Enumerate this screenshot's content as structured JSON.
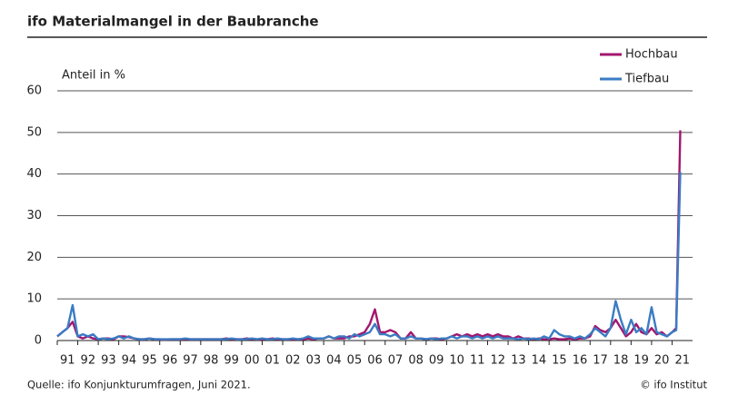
{
  "chart_data": {
    "type": "line",
    "title": "ifo Materialmangel in der Baubranche",
    "y_label": "Anteil in %",
    "source": "Quelle: ifo Konjunkturumfragen, Juni 2021.",
    "copyright": "© ifo Institut",
    "xlim": [
      1991,
      2022
    ],
    "xticks": [
      {
        "value": 1991,
        "label": "91"
      },
      {
        "value": 1992,
        "label": "92"
      },
      {
        "value": 1993,
        "label": "93"
      },
      {
        "value": 1994,
        "label": "94"
      },
      {
        "value": 1995,
        "label": "95"
      },
      {
        "value": 1996,
        "label": "96"
      },
      {
        "value": 1997,
        "label": "97"
      },
      {
        "value": 1998,
        "label": "98"
      },
      {
        "value": 1999,
        "label": "99"
      },
      {
        "value": 2000,
        "label": "00"
      },
      {
        "value": 2001,
        "label": "01"
      },
      {
        "value": 2002,
        "label": "02"
      },
      {
        "value": 2003,
        "label": "03"
      },
      {
        "value": 2004,
        "label": "04"
      },
      {
        "value": 2005,
        "label": "05"
      },
      {
        "value": 2006,
        "label": "06"
      },
      {
        "value": 2007,
        "label": "07"
      },
      {
        "value": 2008,
        "label": "08"
      },
      {
        "value": 2009,
        "label": "09"
      },
      {
        "value": 2010,
        "label": "10"
      },
      {
        "value": 2011,
        "label": "11"
      },
      {
        "value": 2012,
        "label": "12"
      },
      {
        "value": 2013,
        "label": "13"
      },
      {
        "value": 2014,
        "label": "14"
      },
      {
        "value": 2015,
        "label": "15"
      },
      {
        "value": 2016,
        "label": "16"
      },
      {
        "value": 2017,
        "label": "17"
      },
      {
        "value": 2018,
        "label": "18"
      },
      {
        "value": 2019,
        "label": "19"
      },
      {
        "value": 2020,
        "label": "20"
      },
      {
        "value": 2021,
        "label": "21"
      }
    ],
    "ylim": [
      0,
      60
    ],
    "yticks": [
      0,
      10,
      20,
      30,
      40,
      50,
      60
    ],
    "grid": true,
    "x": [
      1991,
      1991.25,
      1991.5,
      1991.75,
      1992,
      1992.25,
      1992.5,
      1992.75,
      1993,
      1993.25,
      1993.5,
      1993.75,
      1994,
      1994.25,
      1994.5,
      1994.75,
      1995,
      1995.25,
      1995.5,
      1995.75,
      1996,
      1996.25,
      1996.5,
      1996.75,
      1997,
      1997.25,
      1997.5,
      1997.75,
      1998,
      1998.25,
      1998.5,
      1998.75,
      1999,
      1999.25,
      1999.5,
      1999.75,
      2000,
      2000.25,
      2000.5,
      2000.75,
      2001,
      2001.25,
      2001.5,
      2001.75,
      2002,
      2002.25,
      2002.5,
      2002.75,
      2003,
      2003.25,
      2003.5,
      2003.75,
      2004,
      2004.25,
      2004.5,
      2004.75,
      2005,
      2005.25,
      2005.5,
      2005.75,
      2006,
      2006.25,
      2006.5,
      2006.75,
      2007,
      2007.25,
      2007.5,
      2007.75,
      2008,
      2008.25,
      2008.5,
      2008.75,
      2009,
      2009.25,
      2009.5,
      2009.75,
      2010,
      2010.25,
      2010.5,
      2010.75,
      2011,
      2011.25,
      2011.5,
      2011.75,
      2012,
      2012.25,
      2012.5,
      2012.75,
      2013,
      2013.25,
      2013.5,
      2013.75,
      2014,
      2014.25,
      2014.5,
      2014.75,
      2015,
      2015.25,
      2015.5,
      2015.75,
      2016,
      2016.25,
      2016.5,
      2016.75,
      2017,
      2017.25,
      2017.5,
      2017.75,
      2018,
      2018.25,
      2018.5,
      2018.75,
      2019,
      2019.25,
      2019.5,
      2019.75,
      2020,
      2020.25,
      2020.5,
      2020.75,
      2021,
      2021.2,
      2021.4
    ],
    "series": [
      {
        "name": "Hochbau",
        "color": "#a3166f",
        "values": [
          1,
          2,
          3,
          4.5,
          1,
          0.5,
          1,
          0.5,
          0.3,
          0.5,
          0.5,
          0.3,
          1,
          1,
          0.8,
          0.5,
          0.3,
          0.3,
          0.5,
          0.3,
          0.3,
          0.2,
          0.3,
          0.3,
          0.3,
          0.3,
          0.3,
          0.3,
          0.3,
          0.3,
          0.3,
          0.3,
          0.3,
          0.5,
          0.3,
          0.3,
          0.3,
          0.5,
          0.3,
          0.3,
          0.3,
          0.3,
          0.5,
          0.3,
          0.3,
          0.3,
          0.3,
          0.3,
          0.3,
          0.5,
          0.3,
          0.5,
          0.5,
          1,
          0.5,
          0.5,
          0.5,
          1,
          1,
          1.5,
          2,
          4,
          7.5,
          2,
          2,
          2.5,
          2,
          0.5,
          0.5,
          2,
          0.5,
          0.5,
          0.3,
          0.5,
          0.5,
          0.3,
          0.5,
          1,
          1.5,
          1,
          1.5,
          1,
          1.5,
          1,
          1.5,
          1,
          1.5,
          1,
          1,
          0.5,
          1,
          0.5,
          0.5,
          0.3,
          0.5,
          0.3,
          0.3,
          0.5,
          0.3,
          0.3,
          0.5,
          0.3,
          0.5,
          0.5,
          1,
          3.5,
          2.5,
          2,
          3,
          5,
          3,
          1,
          2,
          4,
          2,
          1.5,
          3,
          1.5,
          2,
          1,
          2,
          3,
          50.5
        ]
      },
      {
        "name": "Tiefbau",
        "color": "#3a7cc4",
        "values": [
          1,
          2,
          3,
          8.5,
          1,
          1.5,
          1,
          1.5,
          0.3,
          0.5,
          0.3,
          0.5,
          1,
          0.5,
          1,
          0.5,
          0.3,
          0.3,
          0.5,
          0.3,
          0.3,
          0.3,
          0.3,
          0.3,
          0.3,
          0.5,
          0.3,
          0.3,
          0.3,
          0.3,
          0.3,
          0.3,
          0.3,
          0.3,
          0.5,
          0.3,
          0.3,
          0.3,
          0.5,
          0.3,
          0.5,
          0.3,
          0.3,
          0.5,
          0.3,
          0.3,
          0.5,
          0.3,
          0.5,
          1,
          0.5,
          0.5,
          0.5,
          1,
          0.5,
          1,
          1,
          0.5,
          1.5,
          1,
          1.5,
          2,
          4,
          1.5,
          1.5,
          1,
          1.5,
          0.5,
          0.5,
          1,
          0.5,
          0.5,
          0.3,
          0.5,
          0.3,
          0.5,
          0.5,
          1,
          0.5,
          1,
          1,
          0.5,
          1,
          0.5,
          1,
          0.5,
          1,
          0.5,
          0.5,
          0.5,
          0.3,
          0.5,
          0.3,
          0.5,
          0.3,
          1,
          0.5,
          2.5,
          1.5,
          1,
          1,
          0.5,
          1,
          0.5,
          1.5,
          3,
          2,
          1,
          3,
          9.5,
          5,
          1.5,
          5,
          2,
          3,
          1.5,
          8,
          2,
          1.5,
          1,
          2,
          2.5,
          40.5
        ]
      }
    ]
  }
}
